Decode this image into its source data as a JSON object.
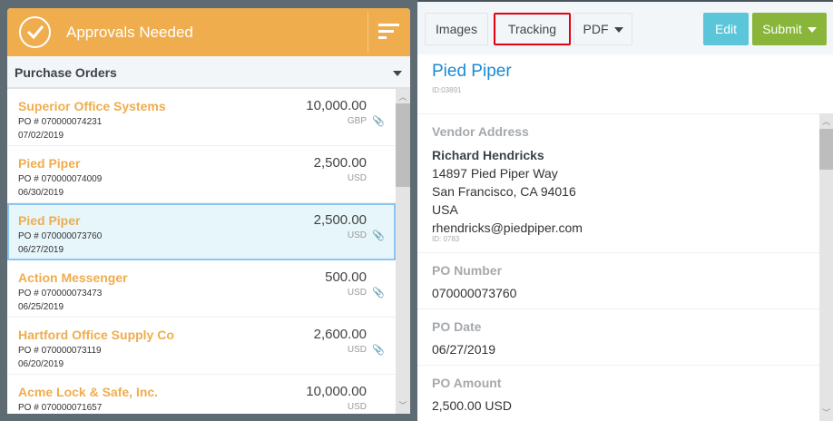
{
  "header": {
    "title": "Approvals Needed",
    "icon": "check-circle-icon",
    "filter_icon": "filter-icon",
    "color": "#efad4d"
  },
  "list_header": {
    "label": "Purchase Orders"
  },
  "orders": [
    {
      "vendor": "Superior Office Systems",
      "po": "PO # 070000074231",
      "date": "07/02/2019",
      "amount": "10,000.00",
      "currency": "GBP",
      "attachment": true
    },
    {
      "vendor": "Pied Piper",
      "po": "PO # 070000074009",
      "date": "06/30/2019",
      "amount": "2,500.00",
      "currency": "USD",
      "attachment": false
    },
    {
      "vendor": "Pied Piper",
      "po": "PO # 070000073760",
      "date": "06/27/2019",
      "amount": "2,500.00",
      "currency": "USD",
      "attachment": true,
      "selected": true
    },
    {
      "vendor": "Action Messenger",
      "po": "PO # 070000073473",
      "date": "06/25/2019",
      "amount": "500.00",
      "currency": "USD",
      "attachment": true
    },
    {
      "vendor": "Hartford Office Supply Co",
      "po": "PO # 070000073119",
      "date": "06/20/2019",
      "amount": "2,600.00",
      "currency": "USD",
      "attachment": true
    },
    {
      "vendor": "Acme Lock & Safe, Inc.",
      "po": "PO # 070000071657",
      "date": "",
      "amount": "10,000.00",
      "currency": "USD",
      "attachment": false
    }
  ],
  "toolbar": {
    "images": "Images",
    "tracking": "Tracking",
    "pdf": "PDF",
    "edit": "Edit",
    "submit": "Submit"
  },
  "detail": {
    "vendor": "Pied Piper",
    "id": "ID:03891",
    "vendor_address_label": "Vendor Address",
    "contact": "Richard Hendricks",
    "street": "14897 Pied Piper Way",
    "city": "San Francisco, CA 94016",
    "country": "USA",
    "email": "rhendricks@piedpiper.com",
    "address_id": "ID: 0783",
    "po_number_label": "PO Number",
    "po_number": "070000073760",
    "po_date_label": "PO Date",
    "po_date": "06/27/2019",
    "po_amount_label": "PO Amount",
    "po_amount": "2,500.00 USD"
  }
}
